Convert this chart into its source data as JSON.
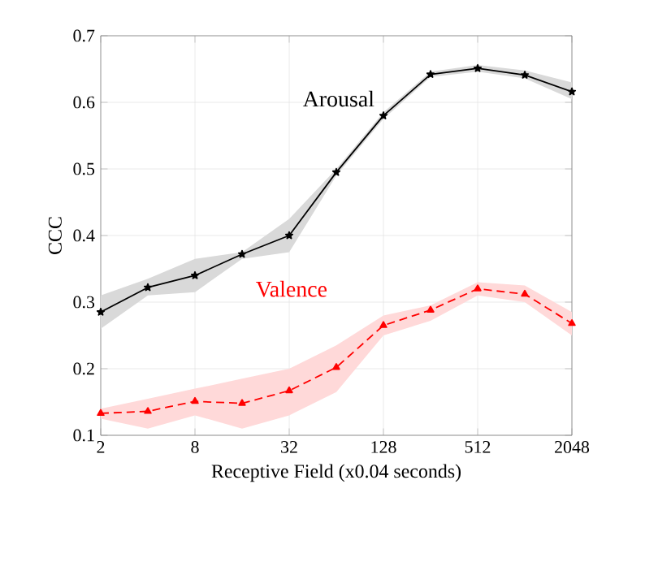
{
  "chart_data": {
    "type": "line",
    "xlabel": "Receptive Field (x0.04 seconds)",
    "ylabel": "CCC",
    "x": [
      2,
      4,
      8,
      16,
      32,
      64,
      128,
      256,
      512,
      1024,
      2048
    ],
    "series": [
      {
        "name": "Arousal",
        "color": "#000000",
        "marker": "star",
        "line_style": "solid",
        "values": [
          0.285,
          0.322,
          0.34,
          0.372,
          0.4,
          0.495,
          0.58,
          0.642,
          0.651,
          0.641,
          0.616
        ],
        "lower": [
          0.26,
          0.31,
          0.315,
          0.365,
          0.375,
          0.49,
          0.575,
          0.638,
          0.646,
          0.636,
          0.605
        ],
        "upper": [
          0.31,
          0.335,
          0.365,
          0.375,
          0.425,
          0.5,
          0.585,
          0.646,
          0.656,
          0.648,
          0.63
        ]
      },
      {
        "name": "Valence",
        "color": "#ff0000",
        "marker": "triangle",
        "line_style": "dashed",
        "values": [
          0.133,
          0.136,
          0.151,
          0.148,
          0.167,
          0.202,
          0.265,
          0.288,
          0.32,
          0.312,
          0.268
        ],
        "lower": [
          0.125,
          0.11,
          0.13,
          0.11,
          0.13,
          0.165,
          0.25,
          0.272,
          0.31,
          0.3,
          0.25
        ],
        "upper": [
          0.14,
          0.155,
          0.17,
          0.185,
          0.2,
          0.235,
          0.28,
          0.295,
          0.33,
          0.325,
          0.285
        ]
      }
    ],
    "log": "x",
    "xlim": [
      2,
      2048
    ],
    "xticks": [
      2,
      8,
      32,
      128,
      512,
      2048
    ],
    "ylim": [
      0.1,
      0.7
    ],
    "yticks": [
      0.1,
      0.2,
      0.3,
      0.4,
      0.5,
      0.6,
      0.7
    ],
    "grid": true
  }
}
